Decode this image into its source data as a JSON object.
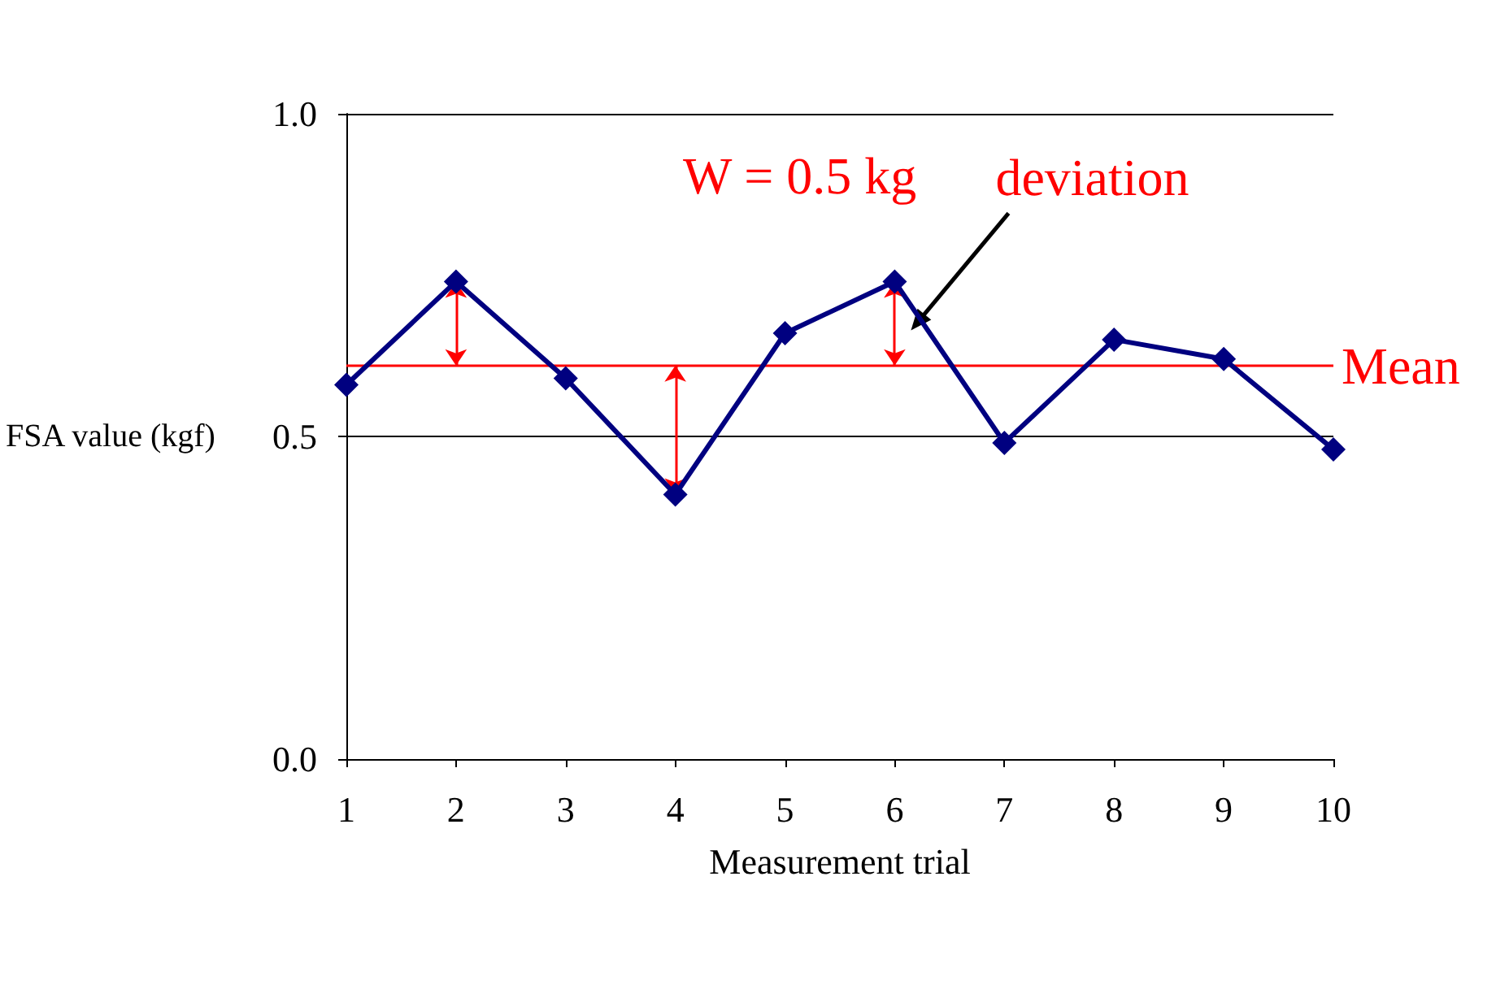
{
  "chart_data": {
    "type": "line",
    "xlabel": "Measurement trial",
    "ylabel": "FSA value (kgf)",
    "categories": [
      "1",
      "2",
      "3",
      "4",
      "5",
      "6",
      "7",
      "8",
      "9",
      "10"
    ],
    "series": [
      {
        "color": "#000080",
        "values": [
          0.58,
          0.74,
          0.59,
          0.41,
          0.66,
          0.74,
          0.49,
          0.65,
          0.62,
          0.48
        ]
      }
    ],
    "ylim": [
      0,
      1
    ],
    "yticks": [
      {
        "value": 0,
        "label": "0.0"
      },
      {
        "value": 0.5,
        "label": "0.5"
      },
      {
        "value": 1,
        "label": "1.0"
      }
    ],
    "grid": "y",
    "marker": "diamond",
    "line_style": "solid",
    "ref_lines": [
      {
        "axis": "y",
        "value": 0.61,
        "label": "Mean",
        "color": "#ff0000"
      }
    ],
    "annotations": [
      "W = 0.5 kg",
      {
        "text": "deviation",
        "x": "6",
        "y": 0.74
      }
    ]
  }
}
